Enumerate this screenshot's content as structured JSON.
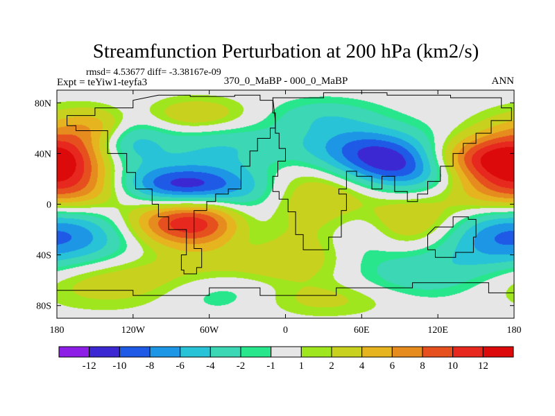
{
  "chart_data": {
    "type": "heatmap",
    "title": "Streamfunction Perturbation at 200 hPa (km2/s)",
    "subtitle_stats": "rmsd= 4.53677 diff= -3.38167e-09",
    "left_label": "Expt = teYiw1-teyfa3",
    "center_label": "370_0_MaBP - 000_0_MaBP",
    "right_label": "ANN",
    "x_ticks": [
      "180",
      "120W",
      "60W",
      "0",
      "60E",
      "120E",
      "180"
    ],
    "x_tick_values": [
      -180,
      -120,
      -60,
      0,
      60,
      120,
      180
    ],
    "y_ticks": [
      "80N",
      "40N",
      "0",
      "40S",
      "80S"
    ],
    "y_tick_values": [
      80,
      40,
      0,
      -40,
      -80
    ],
    "xlim": [
      -180,
      180
    ],
    "ylim": [
      -90,
      90
    ],
    "colorbar": {
      "labels": [
        "-12",
        "-10",
        "-8",
        "-6",
        "-4",
        "-2",
        "-1",
        "1",
        "2",
        "4",
        "6",
        "8",
        "10",
        "12"
      ],
      "colors": [
        "#8c1ee6",
        "#3c28d2",
        "#1e5ae6",
        "#1e96e6",
        "#28c3d7",
        "#3cd7b4",
        "#28e68c",
        "#e6e6e6",
        "#a0e61e",
        "#c8d21e",
        "#e6b41e",
        "#e68c1e",
        "#e6501e",
        "#e6281e",
        "#dc0a0a"
      ]
    },
    "features": [
      {
        "lon": -175,
        "lat": 35,
        "amp": 11,
        "slon": 28,
        "slat": 20
      },
      {
        "lon": -145,
        "lat": 62,
        "amp": 4,
        "slon": 20,
        "slat": 10
      },
      {
        "lon": -125,
        "lat": 50,
        "amp": -5,
        "slon": 20,
        "slat": 15
      },
      {
        "lon": -70,
        "lat": 70,
        "amp": 4,
        "slon": 30,
        "slat": 10
      },
      {
        "lon": -50,
        "lat": 45,
        "amp": -4,
        "slon": 45,
        "slat": 14
      },
      {
        "lon": -80,
        "lat": 15,
        "amp": -11,
        "slon": 38,
        "slat": 11
      },
      {
        "lon": -155,
        "lat": 10,
        "amp": 4,
        "slon": 30,
        "slat": 12
      },
      {
        "lon": -160,
        "lat": -25,
        "amp": -6,
        "slon": 35,
        "slat": 18
      },
      {
        "lon": -75,
        "lat": -15,
        "amp": 12,
        "slon": 35,
        "slat": 13
      },
      {
        "lon": -130,
        "lat": -60,
        "amp": 4,
        "slon": 60,
        "slat": 15
      },
      {
        "lon": -10,
        "lat": -45,
        "amp": 4,
        "slon": 40,
        "slat": 15
      },
      {
        "lon": -30,
        "lat": -15,
        "amp": -4,
        "slon": 20,
        "slat": 20
      },
      {
        "lon": -45,
        "lat": -70,
        "amp": -4,
        "slon": 40,
        "slat": 12
      },
      {
        "lon": 35,
        "lat": 15,
        "amp": 5,
        "slon": 35,
        "slat": 25
      },
      {
        "lon": 95,
        "lat": 30,
        "amp": -12,
        "slon": 40,
        "slat": 14
      },
      {
        "lon": 55,
        "lat": 45,
        "amp": -7,
        "slon": 35,
        "slat": 14
      },
      {
        "lon": 60,
        "lat": -20,
        "amp": -3,
        "slon": 20,
        "slat": 16
      },
      {
        "lon": 100,
        "lat": -15,
        "amp": 4,
        "slon": 30,
        "slat": 15
      },
      {
        "lon": 140,
        "lat": 35,
        "amp": 10,
        "slon": 30,
        "slat": 12
      },
      {
        "lon": 155,
        "lat": 10,
        "amp": 4,
        "slon": 30,
        "slat": 15
      },
      {
        "lon": 110,
        "lat": -55,
        "amp": -4,
        "slon": 40,
        "slat": 15
      },
      {
        "lon": 160,
        "lat": -25,
        "amp": -5,
        "slon": 30,
        "slat": 18
      },
      {
        "lon": 20,
        "lat": -75,
        "amp": 3,
        "slon": 50,
        "slat": 10
      },
      {
        "lon": 30,
        "lat": 70,
        "amp": -3,
        "slon": 30,
        "slat": 10
      }
    ],
    "continent_outlines": [
      [
        [
          -100,
          86
        ],
        [
          -75,
          85
        ],
        [
          -40,
          86
        ],
        [
          -20,
          82
        ],
        [
          -10,
          72
        ],
        [
          -8,
          60
        ],
        [
          -12,
          52
        ],
        [
          -22,
          42
        ],
        [
          -28,
          30
        ],
        [
          -35,
          12
        ],
        [
          -45,
          8
        ],
        [
          -55,
          2
        ],
        [
          -62,
          -5
        ],
        [
          -72,
          -18
        ],
        [
          -72,
          -35
        ],
        [
          -66,
          -50
        ],
        [
          -70,
          -55
        ],
        [
          -80,
          -52
        ],
        [
          -82,
          -40
        ],
        [
          -78,
          -20
        ],
        [
          -92,
          -10
        ],
        [
          -100,
          0
        ],
        [
          -105,
          12
        ],
        [
          -118,
          25
        ],
        [
          -125,
          40
        ],
        [
          -140,
          58
        ],
        [
          -165,
          62
        ],
        [
          -172,
          70
        ],
        [
          -150,
          76
        ],
        [
          -120,
          82
        ]
      ],
      [
        [
          -10,
          84
        ],
        [
          30,
          88
        ],
        [
          80,
          86
        ],
        [
          130,
          84
        ],
        [
          170,
          76
        ],
        [
          178,
          66
        ],
        [
          162,
          56
        ],
        [
          150,
          48
        ],
        [
          140,
          40
        ],
        [
          132,
          30
        ],
        [
          122,
          18
        ],
        [
          112,
          8
        ],
        [
          104,
          2
        ],
        [
          96,
          10
        ],
        [
          86,
          22
        ],
        [
          76,
          12
        ],
        [
          68,
          22
        ],
        [
          56,
          26
        ],
        [
          48,
          12
        ],
        [
          42,
          8
        ],
        [
          48,
          -5
        ],
        [
          44,
          -26
        ],
        [
          34,
          -36
        ],
        [
          22,
          -36
        ],
        [
          14,
          -24
        ],
        [
          8,
          -6
        ],
        [
          2,
          4
        ],
        [
          -5,
          10
        ],
        [
          -10,
          22
        ],
        [
          -6,
          34
        ],
        [
          0,
          44
        ],
        [
          -5,
          56
        ],
        [
          -8,
          66
        ]
      ],
      [
        [
          118,
          -18
        ],
        [
          132,
          -10
        ],
        [
          144,
          -12
        ],
        [
          150,
          -26
        ],
        [
          148,
          -38
        ],
        [
          134,
          -42
        ],
        [
          118,
          -36
        ],
        [
          112,
          -24
        ]
      ],
      [
        [
          -180,
          -68
        ],
        [
          -120,
          -72
        ],
        [
          -60,
          -66
        ],
        [
          -20,
          -72
        ],
        [
          40,
          -66
        ],
        [
          100,
          -62
        ],
        [
          160,
          -70
        ],
        [
          180,
          -72
        ],
        [
          180,
          -90
        ],
        [
          -180,
          -90
        ]
      ]
    ]
  }
}
